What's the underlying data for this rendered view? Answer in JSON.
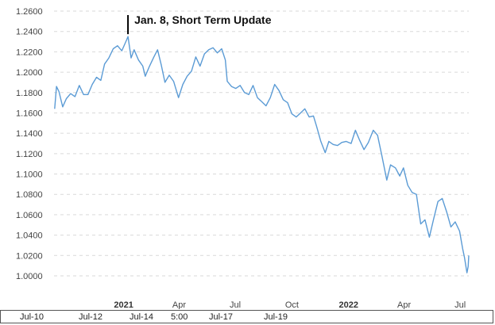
{
  "chart_data": {
    "type": "line",
    "title": "",
    "xlabel": "",
    "ylabel": "",
    "ylim": [
      1.0,
      1.26
    ],
    "y_ticks": [
      "1.2600",
      "1.2400",
      "1.2200",
      "1.2000",
      "1.1800",
      "1.1600",
      "1.1400",
      "1.1200",
      "1.1000",
      "1.0800",
      "1.0600",
      "1.0400",
      "1.0200",
      "1.0000"
    ],
    "x_ticks": [
      "2021",
      "Apr",
      "Jul",
      "Oct",
      "2022",
      "Apr",
      "Jul"
    ],
    "x_range": [
      "2020-09-10",
      "2022-07-15"
    ],
    "grid": true,
    "annotation": {
      "label": "Jan. 8, Short Term Update",
      "date": "2021-01-08",
      "value": 1.235
    },
    "series": [
      {
        "color": "#5b9bd5",
        "points": [
          [
            "2020-09-11",
            1.164
          ],
          [
            "2020-09-14",
            1.186
          ],
          [
            "2020-09-18",
            1.181
          ],
          [
            "2020-09-24",
            1.166
          ],
          [
            "2020-09-30",
            1.174
          ],
          [
            "2020-10-07",
            1.179
          ],
          [
            "2020-10-14",
            1.176
          ],
          [
            "2020-10-21",
            1.187
          ],
          [
            "2020-10-28",
            1.178
          ],
          [
            "2020-11-04",
            1.178
          ],
          [
            "2020-11-11",
            1.188
          ],
          [
            "2020-11-18",
            1.195
          ],
          [
            "2020-11-25",
            1.192
          ],
          [
            "2020-12-01",
            1.208
          ],
          [
            "2020-12-08",
            1.214
          ],
          [
            "2020-12-15",
            1.223
          ],
          [
            "2020-12-22",
            1.226
          ],
          [
            "2020-12-29",
            1.221
          ],
          [
            "2021-01-06",
            1.232
          ],
          [
            "2021-01-08",
            1.235
          ],
          [
            "2021-01-13",
            1.214
          ],
          [
            "2021-01-18",
            1.222
          ],
          [
            "2021-01-25",
            1.212
          ],
          [
            "2021-02-01",
            1.206
          ],
          [
            "2021-02-05",
            1.196
          ],
          [
            "2021-02-12",
            1.206
          ],
          [
            "2021-02-19",
            1.215
          ],
          [
            "2021-02-25",
            1.222
          ],
          [
            "2021-03-03",
            1.207
          ],
          [
            "2021-03-09",
            1.19
          ],
          [
            "2021-03-16",
            1.197
          ],
          [
            "2021-03-23",
            1.191
          ],
          [
            "2021-03-31",
            1.175
          ],
          [
            "2021-04-07",
            1.188
          ],
          [
            "2021-04-14",
            1.196
          ],
          [
            "2021-04-21",
            1.201
          ],
          [
            "2021-04-28",
            1.215
          ],
          [
            "2021-05-05",
            1.206
          ],
          [
            "2021-05-12",
            1.218
          ],
          [
            "2021-05-19",
            1.222
          ],
          [
            "2021-05-26",
            1.224
          ],
          [
            "2021-06-02",
            1.219
          ],
          [
            "2021-06-09",
            1.223
          ],
          [
            "2021-06-15",
            1.212
          ],
          [
            "2021-06-18",
            1.191
          ],
          [
            "2021-06-25",
            1.186
          ],
          [
            "2021-07-02",
            1.184
          ],
          [
            "2021-07-09",
            1.187
          ],
          [
            "2021-07-16",
            1.18
          ],
          [
            "2021-07-23",
            1.178
          ],
          [
            "2021-07-30",
            1.187
          ],
          [
            "2021-08-06",
            1.175
          ],
          [
            "2021-08-13",
            1.171
          ],
          [
            "2021-08-20",
            1.167
          ],
          [
            "2021-08-27",
            1.175
          ],
          [
            "2021-09-03",
            1.188
          ],
          [
            "2021-09-10",
            1.182
          ],
          [
            "2021-09-17",
            1.173
          ],
          [
            "2021-09-24",
            1.17
          ],
          [
            "2021-10-01",
            1.159
          ],
          [
            "2021-10-08",
            1.156
          ],
          [
            "2021-10-15",
            1.16
          ],
          [
            "2021-10-22",
            1.164
          ],
          [
            "2021-10-29",
            1.156
          ],
          [
            "2021-11-05",
            1.157
          ],
          [
            "2021-11-10",
            1.147
          ],
          [
            "2021-11-17",
            1.132
          ],
          [
            "2021-11-24",
            1.121
          ],
          [
            "2021-11-30",
            1.132
          ],
          [
            "2021-12-07",
            1.129
          ],
          [
            "2021-12-14",
            1.128
          ],
          [
            "2021-12-21",
            1.131
          ],
          [
            "2021-12-28",
            1.132
          ],
          [
            "2022-01-05",
            1.13
          ],
          [
            "2022-01-12",
            1.143
          ],
          [
            "2022-01-19",
            1.133
          ],
          [
            "2022-01-26",
            1.124
          ],
          [
            "2022-02-02",
            1.131
          ],
          [
            "2022-02-10",
            1.143
          ],
          [
            "2022-02-17",
            1.138
          ],
          [
            "2022-02-24",
            1.118
          ],
          [
            "2022-03-04",
            1.094
          ],
          [
            "2022-03-10",
            1.109
          ],
          [
            "2022-03-18",
            1.106
          ],
          [
            "2022-03-25",
            1.098
          ],
          [
            "2022-03-31",
            1.106
          ],
          [
            "2022-04-07",
            1.089
          ],
          [
            "2022-04-14",
            1.082
          ],
          [
            "2022-04-21",
            1.08
          ],
          [
            "2022-04-28",
            1.051
          ],
          [
            "2022-05-05",
            1.055
          ],
          [
            "2022-05-12",
            1.038
          ],
          [
            "2022-05-19",
            1.056
          ],
          [
            "2022-05-26",
            1.073
          ],
          [
            "2022-06-02",
            1.076
          ],
          [
            "2022-06-09",
            1.063
          ],
          [
            "2022-06-16",
            1.048
          ],
          [
            "2022-06-23",
            1.053
          ],
          [
            "2022-06-30",
            1.044
          ],
          [
            "2022-07-05",
            1.027
          ],
          [
            "2022-07-08",
            1.018
          ],
          [
            "2022-07-12",
            1.003
          ],
          [
            "2022-07-14",
            1.009
          ],
          [
            "2022-07-15",
            1.02
          ]
        ]
      }
    ]
  },
  "navigator": {
    "labels": [
      "Jul-10",
      "Jul-12",
      "Jul-14",
      "5:00",
      "Jul-17",
      "Jul-19"
    ]
  }
}
